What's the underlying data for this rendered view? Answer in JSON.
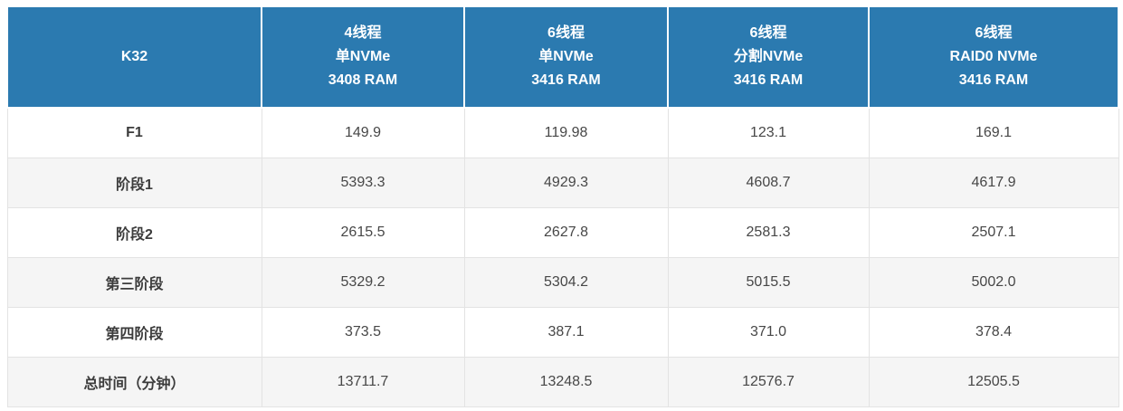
{
  "colors": {
    "header_bg": "#2B7AB0",
    "header_text": "#FFFFFF",
    "row_bg": "#FFFFFF",
    "row_alt_bg": "#F5F5F5",
    "border": "#E3E3E3",
    "label_text": "#3C3C3C",
    "value_text": "#474747"
  },
  "table": {
    "header": {
      "corner_label": "K32",
      "columns": [
        {
          "line1": "4线程",
          "line2": "单NVMe",
          "line3": "3408 RAM"
        },
        {
          "line1": "6线程",
          "line2": "单NVMe",
          "line3": "3416 RAM"
        },
        {
          "line1": "6线程",
          "line2": "分割NVMe",
          "line3": "3416 RAM"
        },
        {
          "line1": "6线程",
          "line2": "RAID0 NVMe",
          "line3": "3416 RAM"
        }
      ]
    },
    "rows": [
      {
        "label": "F1",
        "values": [
          "149.9",
          "119.98",
          "123.1",
          "169.1"
        ]
      },
      {
        "label": "阶段1",
        "values": [
          "5393.3",
          "4929.3",
          "4608.7",
          "4617.9"
        ]
      },
      {
        "label": "阶段2",
        "values": [
          "2615.5",
          "2627.8",
          "2581.3",
          "2507.1"
        ]
      },
      {
        "label": "第三阶段",
        "values": [
          "5329.2",
          "5304.2",
          "5015.5",
          "5002.0"
        ]
      },
      {
        "label": "第四阶段",
        "values": [
          "373.5",
          "387.1",
          "371.0",
          "378.4"
        ]
      },
      {
        "label": "总时间（分钟）",
        "values": [
          "13711.7",
          "13248.5",
          "12576.7",
          "12505.5"
        ]
      }
    ]
  },
  "chart_data": {
    "type": "table",
    "title": "K32",
    "columns": [
      "K32",
      "4线程 单NVMe 3408 RAM",
      "6线程 单NVMe 3416 RAM",
      "6线程 分割NVMe 3416 RAM",
      "6线程 RAID0 NVMe 3416 RAM"
    ],
    "rows": [
      [
        "F1",
        149.9,
        119.98,
        123.1,
        169.1
      ],
      [
        "阶段1",
        5393.3,
        4929.3,
        4608.7,
        4617.9
      ],
      [
        "阶段2",
        2615.5,
        2627.8,
        2581.3,
        2507.1
      ],
      [
        "第三阶段",
        5329.2,
        5304.2,
        5015.5,
        5002.0
      ],
      [
        "第四阶段",
        373.5,
        387.1,
        371.0,
        378.4
      ],
      [
        "总时间（分钟）",
        13711.7,
        13248.5,
        12576.7,
        12505.5
      ]
    ]
  }
}
